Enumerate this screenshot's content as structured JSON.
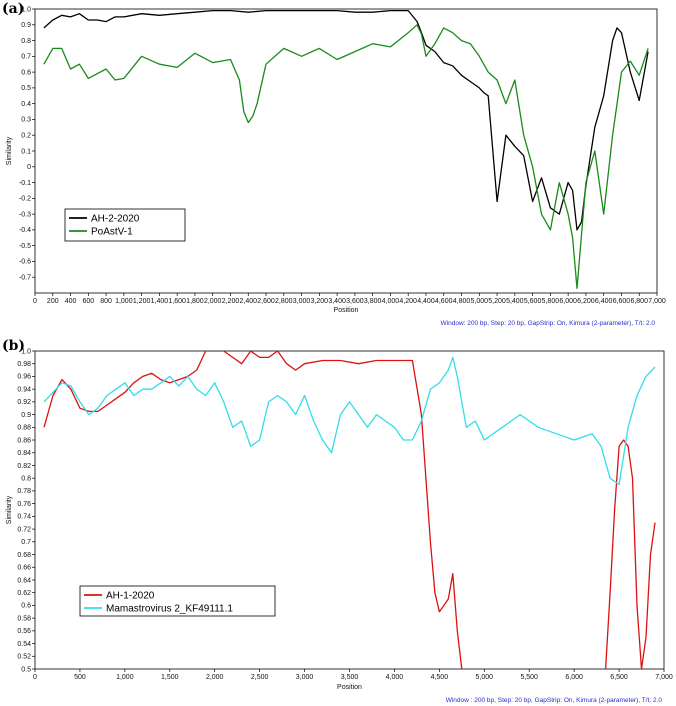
{
  "chart_data": [
    {
      "type": "line",
      "panel_label": "(a)",
      "xlabel": "Position",
      "ylabel": "Similarity",
      "xlim": [
        0,
        7000
      ],
      "ylim": [
        -0.8,
        1.0
      ],
      "xticks": [
        0,
        200,
        400,
        600,
        800,
        1000,
        1200,
        1400,
        1600,
        1800,
        2000,
        2200,
        2400,
        2600,
        2800,
        3000,
        3200,
        3400,
        3600,
        3800,
        4000,
        4200,
        4400,
        4600,
        4800,
        5000,
        5200,
        5400,
        5600,
        5800,
        6000,
        6200,
        6400,
        6600,
        6800,
        7000
      ],
      "xtick_labels": [
        "0",
        "200",
        "400",
        "600",
        "800",
        "1,000",
        "1,200",
        "1,400",
        "1,600",
        "1,800",
        "2,000",
        "2,200",
        "2,400",
        "2,600",
        "2,800",
        "3,000",
        "3,200",
        "3,400",
        "3,600",
        "3,800",
        "4,000",
        "4,200",
        "4,400",
        "4,600",
        "4,800",
        "5,000",
        "5,200",
        "5,400",
        "5,600",
        "5,800",
        "6,000",
        "6,200",
        "6,400",
        "6,600",
        "6,800",
        "7,000"
      ],
      "yticks": [
        1.0,
        0.9,
        0.8,
        0.7,
        0.6,
        0.5,
        0.4,
        0.3,
        0.2,
        0.1,
        0,
        -0.1,
        -0.2,
        -0.3,
        -0.4,
        -0.5,
        -0.6,
        -0.7
      ],
      "ytick_labels": [
        "1.0",
        "0.9",
        "0.8",
        "0.7",
        "0.6",
        "0.5",
        "0.4",
        "0.3",
        "0.2",
        "0.1",
        "0",
        "-0.1",
        "-0.2",
        "-0.3",
        "-0.4",
        "-0.5",
        "-0.6",
        "-0.7"
      ],
      "legend_position": "bottom-left",
      "footnote": "Window: 200 bp, Step: 20 bp, GapStrip: On, Kimura (2-parameter), T/t: 2.0",
      "series": [
        {
          "name": "AH-2-2020",
          "color": "#000000",
          "x": [
            100,
            200,
            300,
            400,
            500,
            600,
            700,
            800,
            900,
            1000,
            1200,
            1400,
            1600,
            1800,
            2000,
            2200,
            2400,
            2600,
            2800,
            3000,
            3200,
            3400,
            3600,
            3800,
            4000,
            4200,
            4300,
            4350,
            4400,
            4500,
            4600,
            4700,
            4800,
            4900,
            5000,
            5050,
            5100,
            5200,
            5300,
            5400,
            5500,
            5600,
            5700,
            5800,
            5900,
            6000,
            6050,
            6100,
            6150,
            6200,
            6300,
            6400,
            6500,
            6550,
            6600,
            6700,
            6800,
            6900
          ],
          "y": [
            0.88,
            0.93,
            0.96,
            0.95,
            0.97,
            0.93,
            0.93,
            0.92,
            0.95,
            0.95,
            0.97,
            0.96,
            0.97,
            0.98,
            0.99,
            0.99,
            0.98,
            0.99,
            0.99,
            0.99,
            0.99,
            0.99,
            0.98,
            0.98,
            0.99,
            0.99,
            0.92,
            0.85,
            0.77,
            0.73,
            0.66,
            0.64,
            0.58,
            0.54,
            0.5,
            0.47,
            0.45,
            -0.22,
            0.2,
            0.13,
            0.07,
            -0.22,
            -0.07,
            -0.26,
            -0.3,
            -0.1,
            -0.15,
            -0.4,
            -0.35,
            -0.12,
            0.25,
            0.45,
            0.8,
            0.88,
            0.85,
            0.6,
            0.42,
            0.73
          ]
        },
        {
          "name": "PoAstV-1",
          "color": "#1a8a1a",
          "x": [
            100,
            200,
            300,
            400,
            500,
            600,
            700,
            800,
            900,
            1000,
            1200,
            1400,
            1600,
            1800,
            2000,
            2200,
            2300,
            2350,
            2400,
            2450,
            2500,
            2600,
            2800,
            3000,
            3200,
            3400,
            3600,
            3800,
            4000,
            4200,
            4300,
            4350,
            4400,
            4500,
            4600,
            4700,
            4800,
            4900,
            5000,
            5100,
            5200,
            5300,
            5400,
            5500,
            5600,
            5700,
            5800,
            5900,
            6000,
            6050,
            6100,
            6200,
            6300,
            6400,
            6500,
            6600,
            6700,
            6800,
            6900
          ],
          "y": [
            0.65,
            0.75,
            0.75,
            0.62,
            0.65,
            0.56,
            0.59,
            0.62,
            0.55,
            0.56,
            0.7,
            0.65,
            0.63,
            0.72,
            0.66,
            0.68,
            0.55,
            0.35,
            0.28,
            0.32,
            0.4,
            0.65,
            0.75,
            0.7,
            0.75,
            0.68,
            0.73,
            0.78,
            0.76,
            0.85,
            0.9,
            0.84,
            0.7,
            0.78,
            0.88,
            0.85,
            0.8,
            0.78,
            0.7,
            0.6,
            0.55,
            0.4,
            0.55,
            0.2,
            0.0,
            -0.3,
            -0.4,
            -0.1,
            -0.3,
            -0.45,
            -0.77,
            -0.1,
            0.1,
            -0.3,
            0.2,
            0.6,
            0.67,
            0.58,
            0.75
          ]
        }
      ]
    },
    {
      "type": "line",
      "panel_label": "(b)",
      "xlabel": "Position",
      "ylabel": "Similarity",
      "xlim": [
        0,
        7000
      ],
      "ylim": [
        0.5,
        1.0
      ],
      "xticks": [
        0,
        500,
        1000,
        1500,
        2000,
        2500,
        3000,
        3500,
        4000,
        4500,
        5000,
        5500,
        6000,
        6500,
        7000
      ],
      "xtick_labels": [
        "0",
        "500",
        "1,000",
        "1,500",
        "2,000",
        "2,500",
        "3,000",
        "3,500",
        "4,000",
        "4,500",
        "5,000",
        "5,500",
        "6,000",
        "6,500",
        "7,000"
      ],
      "yticks": [
        1.0,
        0.98,
        0.96,
        0.94,
        0.92,
        0.9,
        0.88,
        0.86,
        0.84,
        0.82,
        0.8,
        0.78,
        0.76,
        0.74,
        0.72,
        0.7,
        0.68,
        0.66,
        0.64,
        0.62,
        0.6,
        0.58,
        0.56,
        0.54,
        0.52,
        0.5
      ],
      "ytick_labels": [
        "1.0",
        "0.98",
        "0.96",
        "0.94",
        "0.92",
        "0.9",
        "0.88",
        "0.86",
        "0.84",
        "0.82",
        "0.8",
        "0.78",
        "0.76",
        "0.74",
        "0.72",
        "0.7",
        "0.68",
        "0.66",
        "0.64",
        "0.62",
        "0.6",
        "0.58",
        "0.56",
        "0.54",
        "0.52",
        "0.5"
      ],
      "legend_position": "bottom-left",
      "footnote": "Window : 200 bp, Step: 20 bp, GapStrip: On, Kimura (2-parameter), T/t: 2.0",
      "series": [
        {
          "name": "AH-1-2020",
          "color": "#dd1111",
          "x": [
            100,
            200,
            300,
            400,
            500,
            600,
            700,
            800,
            900,
            1000,
            1100,
            1200,
            1300,
            1400,
            1500,
            1600,
            1700,
            1800,
            1900,
            2000,
            2100,
            2200,
            2300,
            2400,
            2500,
            2600,
            2700,
            2800,
            2900,
            3000,
            3200,
            3400,
            3600,
            3800,
            4000,
            4200,
            4300,
            4350,
            4400,
            4450,
            4500,
            4550,
            4600,
            4650,
            4700,
            4750
          ],
          "y": [
            0.88,
            0.93,
            0.955,
            0.94,
            0.91,
            0.905,
            0.905,
            0.915,
            0.925,
            0.935,
            0.95,
            0.96,
            0.965,
            0.955,
            0.95,
            0.955,
            0.96,
            0.97,
            1.0,
            1.0,
            1.0,
            0.99,
            0.98,
            1.0,
            0.99,
            0.99,
            1.0,
            0.98,
            0.97,
            0.98,
            0.985,
            0.985,
            0.98,
            0.985,
            0.985,
            0.985,
            0.9,
            0.8,
            0.7,
            0.62,
            0.59,
            0.6,
            0.61,
            0.65,
            0.56,
            0.5
          ]
        },
        {
          "name": "AH-1-2020",
          "color": "#dd1111",
          "x": [
            6350,
            6400,
            6450,
            6500,
            6550,
            6600,
            6650,
            6700,
            6750,
            6800,
            6850,
            6900
          ],
          "y": [
            0.5,
            0.62,
            0.75,
            0.85,
            0.86,
            0.85,
            0.8,
            0.6,
            0.5,
            0.55,
            0.68,
            0.73
          ]
        },
        {
          "name": "Mamastrovirus 2_KF49111.1",
          "color": "#33dde8",
          "x": [
            100,
            200,
            300,
            400,
            500,
            600,
            700,
            800,
            900,
            1000,
            1100,
            1200,
            1300,
            1400,
            1500,
            1600,
            1700,
            1800,
            1900,
            2000,
            2100,
            2200,
            2300,
            2400,
            2500,
            2600,
            2700,
            2800,
            2900,
            3000,
            3100,
            3200,
            3300,
            3400,
            3500,
            3600,
            3700,
            3800,
            3900,
            4000,
            4100,
            4200,
            4300,
            4400,
            4500,
            4600,
            4650,
            4700,
            4800,
            4900,
            5000,
            5200,
            5400,
            5600,
            5800,
            6000,
            6200,
            6300,
            6400,
            6500,
            6600,
            6700,
            6800,
            6900
          ],
          "y": [
            0.92,
            0.935,
            0.95,
            0.945,
            0.92,
            0.9,
            0.91,
            0.93,
            0.94,
            0.95,
            0.93,
            0.94,
            0.94,
            0.95,
            0.96,
            0.945,
            0.96,
            0.94,
            0.93,
            0.95,
            0.92,
            0.88,
            0.89,
            0.85,
            0.86,
            0.92,
            0.93,
            0.92,
            0.9,
            0.93,
            0.89,
            0.86,
            0.84,
            0.9,
            0.92,
            0.9,
            0.88,
            0.9,
            0.89,
            0.88,
            0.86,
            0.86,
            0.89,
            0.94,
            0.95,
            0.97,
            0.99,
            0.96,
            0.88,
            0.89,
            0.86,
            0.88,
            0.9,
            0.88,
            0.87,
            0.86,
            0.87,
            0.85,
            0.8,
            0.79,
            0.88,
            0.93,
            0.96,
            0.975
          ]
        }
      ]
    }
  ]
}
